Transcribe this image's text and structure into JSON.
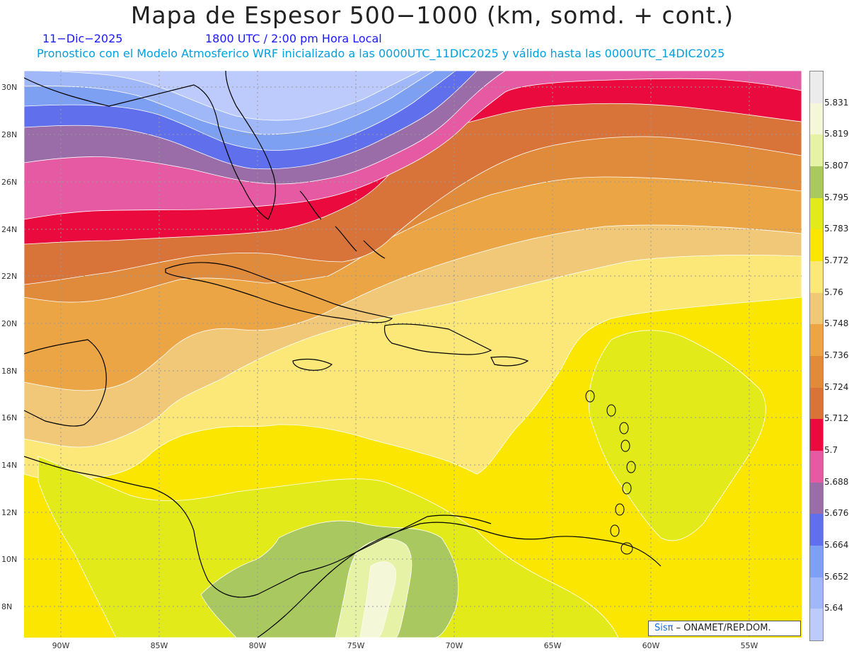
{
  "header": {
    "title": "Mapa de Espesor 500−1000 (km, somd. + cont.)",
    "date": "11−Dic−2025",
    "time": "1800 UTC / 2:00 pm Hora Local",
    "description": "Pronostico con el Modelo Atmosferico WRF inicializado a las 0000UTC_11DIC2025 y válido hasta las  0000UTC_14DIC2025"
  },
  "axes": {
    "lat_labels": [
      "30N",
      "28N",
      "26N",
      "24N",
      "22N",
      "20N",
      "18N",
      "16N",
      "14N",
      "12N",
      "10N",
      "8N"
    ],
    "lon_labels": [
      "90W",
      "85W",
      "80W",
      "75W",
      "70W",
      "65W",
      "60W",
      "55W"
    ]
  },
  "colorbar": {
    "levels": [
      "5.831",
      "5.819",
      "5.807",
      "5.795",
      "5.783",
      "5.772",
      "5.76",
      "5.748",
      "5.736",
      "5.724",
      "5.712",
      "5.7",
      "5.688",
      "5.676",
      "5.664",
      "5.652",
      "5.64"
    ],
    "colors": [
      "#ececec",
      "#f4f7d8",
      "#e6f2a6",
      "#a9c860",
      "#e2ea1a",
      "#fae600",
      "#fbe878",
      "#f0c878",
      "#eba545",
      "#e08a3c",
      "#d8733a",
      "#ea0a3e",
      "#e55aa2",
      "#9a6ca8",
      "#6070ec",
      "#7ea0f2",
      "#a0b8f8",
      "#bccafc"
    ]
  },
  "credit": {
    "brand": "Sisπ",
    "text": " – ONAMET/REP.DOM."
  }
}
